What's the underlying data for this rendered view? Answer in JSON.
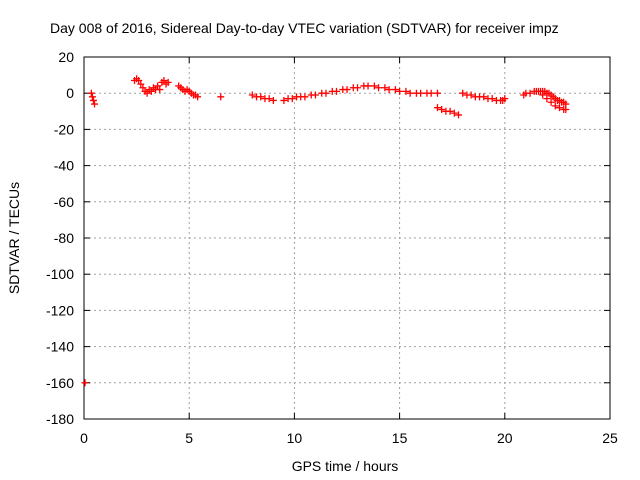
{
  "chart_data": {
    "type": "scatter",
    "title": "Day 008 of 2016, Sidereal Day-to-day VTEC variation (SDTVAR) for receiver impz",
    "xlabel": "GPS time / hours",
    "ylabel": "SDTVAR / TECUs",
    "xlim": [
      0,
      25
    ],
    "ylim": [
      -180,
      20
    ],
    "xticks": [
      0,
      5,
      10,
      15,
      20,
      25
    ],
    "yticks": [
      20,
      0,
      -20,
      -40,
      -60,
      -80,
      -100,
      -120,
      -140,
      -160,
      -180
    ],
    "grid": true,
    "marker": "+",
    "series_color": "#ff0000",
    "series": [
      {
        "name": "SDTVAR",
        "x": [
          0.05,
          0.35,
          0.4,
          0.45,
          0.5,
          2.4,
          2.5,
          2.6,
          2.7,
          2.8,
          2.9,
          3.0,
          3.1,
          3.2,
          3.3,
          3.4,
          3.5,
          3.6,
          3.7,
          3.8,
          3.9,
          4.0,
          4.5,
          4.6,
          4.7,
          4.8,
          4.9,
          5.0,
          5.1,
          5.2,
          5.3,
          5.4,
          6.5,
          8.0,
          8.2,
          8.4,
          8.6,
          8.8,
          9.0,
          9.5,
          9.7,
          9.9,
          10.1,
          10.3,
          10.5,
          10.8,
          11.0,
          11.3,
          11.5,
          11.8,
          12.0,
          12.3,
          12.5,
          12.8,
          13.0,
          13.3,
          13.5,
          13.8,
          14.0,
          14.3,
          14.5,
          14.8,
          15.0,
          15.3,
          15.5,
          15.8,
          16.0,
          16.3,
          16.5,
          16.8,
          16.8,
          17.0,
          17.2,
          17.4,
          17.6,
          17.8,
          18.0,
          18.2,
          18.4,
          18.6,
          18.8,
          19.0,
          19.2,
          19.4,
          19.6,
          19.8,
          19.9,
          20.0,
          20.9,
          21.0,
          21.2,
          21.4,
          21.5,
          21.6,
          21.7,
          21.8,
          21.9,
          22.0,
          22.1,
          22.2,
          22.3,
          22.4,
          22.5,
          22.6,
          22.7,
          22.8,
          22.9,
          21.8,
          22.0,
          22.2,
          22.4,
          22.6,
          22.8,
          22.9
        ],
        "y": [
          -160,
          0,
          -2,
          -4,
          -6,
          7,
          8,
          7,
          5,
          3,
          1,
          0,
          2,
          1,
          3,
          2,
          4,
          2,
          6,
          7,
          5,
          6,
          4,
          3,
          2,
          1,
          2,
          1,
          0,
          -1,
          -1,
          -2,
          -2,
          -1,
          -2,
          -2,
          -3,
          -3,
          -4,
          -4,
          -3,
          -3,
          -2,
          -2,
          -2,
          -1,
          -1,
          0,
          0,
          1,
          1,
          2,
          2,
          3,
          3,
          4,
          4,
          4,
          3,
          3,
          2,
          2,
          1,
          1,
          0,
          0,
          0,
          0,
          0,
          0,
          -8,
          -9,
          -10,
          -10,
          -11,
          -12,
          0,
          -1,
          -1,
          -2,
          -2,
          -2,
          -3,
          -3,
          -4,
          -4,
          -4,
          -3,
          -1,
          0,
          0,
          1,
          1,
          1,
          1,
          1,
          1,
          0,
          0,
          -1,
          -2,
          -3,
          -4,
          -4,
          -5,
          -5,
          -6,
          -1,
          -3,
          -5,
          -7,
          -8,
          -9,
          -9
        ]
      }
    ]
  }
}
